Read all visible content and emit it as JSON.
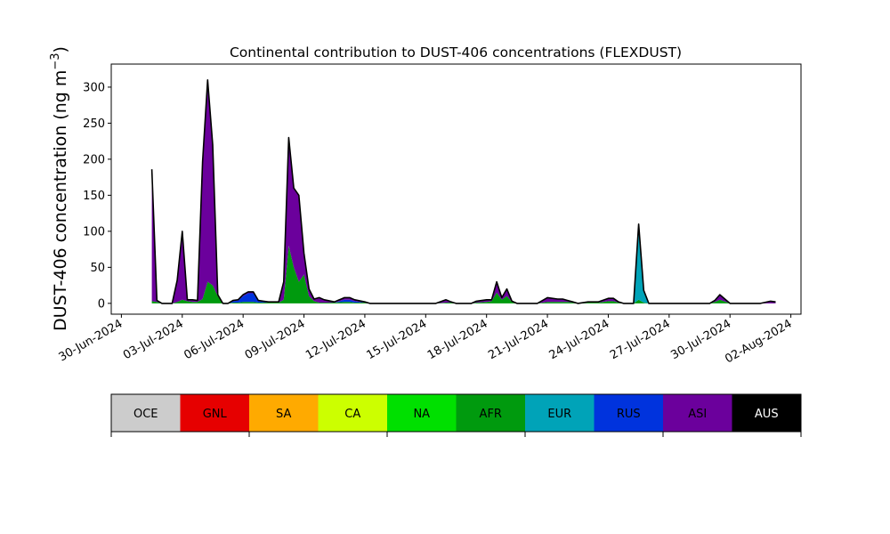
{
  "chart_data": {
    "type": "area",
    "stacked": true,
    "title": "Continental contribution to DUST-406 concentrations (FLEXDUST)",
    "ylabel": "DUST-406 concentration (ng m⁻³)",
    "ylabel_main": "DUST-406 concentration (ng m",
    "ylabel_sup": "−3",
    "ylabel_close": ")",
    "xlabel": "",
    "ylim": [
      -15,
      332
    ],
    "xlim": [
      "2024-06-29T12:00",
      "2024-08-02T12:00"
    ],
    "yticks": [
      0,
      50,
      100,
      150,
      200,
      250,
      300
    ],
    "xticks": [
      "30-Jun-2024",
      "03-Jul-2024",
      "06-Jul-2024",
      "09-Jul-2024",
      "12-Jul-2024",
      "15-Jul-2024",
      "18-Jul-2024",
      "21-Jul-2024",
      "24-Jul-2024",
      "27-Jul-2024",
      "30-Jul-2024",
      "02-Aug-2024"
    ],
    "xtick_dates": [
      "2024-06-30",
      "2024-07-03",
      "2024-07-06",
      "2024-07-09",
      "2024-07-12",
      "2024-07-15",
      "2024-07-18",
      "2024-07-21",
      "2024-07-24",
      "2024-07-27",
      "2024-07-30",
      "2024-08-02"
    ],
    "grid": false,
    "legend": "colorbar-below",
    "legend_entries": [
      {
        "name": "OCE",
        "color": "#cccccc",
        "text_color": "#000000"
      },
      {
        "name": "GNL",
        "color": "#e60000",
        "text_color": "#000000"
      },
      {
        "name": "SA",
        "color": "#ffaa00",
        "text_color": "#000000"
      },
      {
        "name": "CA",
        "color": "#ccff00",
        "text_color": "#000000"
      },
      {
        "name": "NA",
        "color": "#00e000",
        "text_color": "#000000"
      },
      {
        "name": "AFR",
        "color": "#009a0e",
        "text_color": "#000000"
      },
      {
        "name": "EUR",
        "color": "#00a3b8",
        "text_color": "#000000"
      },
      {
        "name": "RUS",
        "color": "#0033dd",
        "text_color": "#000000"
      },
      {
        "name": "ASI",
        "color": "#6b009c",
        "text_color": "#000000"
      },
      {
        "name": "AUS",
        "color": "#000000",
        "text_color": "#ffffff"
      }
    ],
    "x": [
      "2024-07-01T12:00",
      "2024-07-01T18:00",
      "2024-07-02T00:00",
      "2024-07-02T06:00",
      "2024-07-02T12:00",
      "2024-07-02T18:00",
      "2024-07-03T00:00",
      "2024-07-03T06:00",
      "2024-07-03T12:00",
      "2024-07-03T18:00",
      "2024-07-04T00:00",
      "2024-07-04T06:00",
      "2024-07-04T12:00",
      "2024-07-04T18:00",
      "2024-07-05T00:00",
      "2024-07-05T06:00",
      "2024-07-05T12:00",
      "2024-07-05T18:00",
      "2024-07-06T00:00",
      "2024-07-06T06:00",
      "2024-07-06T12:00",
      "2024-07-06T18:00",
      "2024-07-07T00:00",
      "2024-07-07T06:00",
      "2024-07-07T12:00",
      "2024-07-07T18:00",
      "2024-07-08T00:00",
      "2024-07-08T06:00",
      "2024-07-08T12:00",
      "2024-07-08T18:00",
      "2024-07-09T00:00",
      "2024-07-09T06:00",
      "2024-07-09T12:00",
      "2024-07-09T18:00",
      "2024-07-10T00:00",
      "2024-07-10T12:00",
      "2024-07-11T00:00",
      "2024-07-11T06:00",
      "2024-07-11T12:00",
      "2024-07-12T00:00",
      "2024-07-12T06:00",
      "2024-07-12T12:00",
      "2024-07-13T00:00",
      "2024-07-13T12:00",
      "2024-07-14T00:00",
      "2024-07-14T12:00",
      "2024-07-15T00:00",
      "2024-07-15T12:00",
      "2024-07-16T00:00",
      "2024-07-16T06:00",
      "2024-07-16T12:00",
      "2024-07-17T00:00",
      "2024-07-17T06:00",
      "2024-07-17T12:00",
      "2024-07-18T00:00",
      "2024-07-18T06:00",
      "2024-07-18T12:00",
      "2024-07-18T18:00",
      "2024-07-19T00:00",
      "2024-07-19T06:00",
      "2024-07-19T12:00",
      "2024-07-19T18:00",
      "2024-07-20T00:00",
      "2024-07-20T12:00",
      "2024-07-21T00:00",
      "2024-07-21T12:00",
      "2024-07-21T18:00",
      "2024-07-22T00:00",
      "2024-07-22T06:00",
      "2024-07-22T12:00",
      "2024-07-23T00:00",
      "2024-07-23T12:00",
      "2024-07-24T00:00",
      "2024-07-24T06:00",
      "2024-07-24T12:00",
      "2024-07-24T18:00",
      "2024-07-25T00:00",
      "2024-07-25T06:00",
      "2024-07-25T12:00",
      "2024-07-25T18:00",
      "2024-07-26T00:00",
      "2024-07-26T06:00",
      "2024-07-26T12:00",
      "2024-07-27T00:00",
      "2024-07-27T12:00",
      "2024-07-28T00:00",
      "2024-07-28T12:00",
      "2024-07-29T00:00",
      "2024-07-29T06:00",
      "2024-07-29T12:00",
      "2024-07-30T00:00",
      "2024-07-30T12:00",
      "2024-07-31T00:00",
      "2024-07-31T12:00",
      "2024-08-01T00:00",
      "2024-08-01T06:00"
    ],
    "series": [
      {
        "name": "NA",
        "color": "#00e000",
        "values": [
          0,
          0,
          0,
          0,
          0,
          0,
          0,
          0,
          0,
          0,
          0,
          0,
          0,
          0,
          0,
          0,
          0,
          0,
          0,
          0,
          0,
          0,
          0,
          0,
          0,
          0,
          0,
          0,
          0,
          0,
          0,
          0,
          0,
          0,
          0,
          0,
          0,
          0,
          0,
          0,
          0,
          0,
          0,
          0,
          0,
          0,
          0,
          0,
          0,
          0,
          0,
          0,
          0,
          0,
          0,
          0,
          0,
          0,
          0,
          0,
          0,
          0,
          0,
          0,
          0,
          0,
          0,
          0,
          0,
          0,
          0,
          0,
          0,
          0,
          0,
          0,
          0,
          0,
          0,
          0,
          0,
          0,
          0,
          0,
          0,
          0,
          0,
          0,
          0,
          0,
          0,
          0,
          0,
          0,
          0,
          0
        ]
      },
      {
        "name": "AFR",
        "color": "#009a0e",
        "values": [
          3,
          2,
          0,
          0,
          0,
          2,
          5,
          3,
          2,
          2,
          6,
          30,
          25,
          10,
          0,
          0,
          1,
          1,
          2,
          2,
          2,
          1,
          1,
          1,
          1,
          1,
          5,
          80,
          50,
          30,
          40,
          10,
          3,
          1,
          1,
          1,
          2,
          2,
          1,
          1,
          0,
          0,
          0,
          0,
          0,
          0,
          0,
          0,
          1,
          1,
          0,
          0,
          0,
          1,
          2,
          3,
          15,
          5,
          10,
          2,
          0,
          0,
          0,
          0,
          2,
          2,
          2,
          2,
          1,
          0,
          1,
          1,
          3,
          3,
          1,
          0,
          0,
          0,
          5,
          1,
          0,
          0,
          0,
          0,
          0,
          0,
          0,
          0,
          2,
          5,
          0,
          0,
          0,
          0,
          0,
          0
        ]
      },
      {
        "name": "EUR",
        "color": "#00a3b8",
        "values": [
          0,
          0,
          0,
          0,
          0,
          0,
          0,
          0,
          0,
          0,
          0,
          0,
          0,
          0,
          0,
          0,
          0,
          0,
          0,
          0,
          0,
          0,
          0,
          0,
          0,
          0,
          0,
          0,
          0,
          0,
          0,
          0,
          0,
          0,
          0,
          0,
          0,
          0,
          0,
          0,
          0,
          0,
          0,
          0,
          0,
          0,
          0,
          0,
          0,
          0,
          0,
          0,
          0,
          0,
          0,
          0,
          0,
          0,
          0,
          0,
          0,
          0,
          0,
          0,
          0,
          0,
          0,
          0,
          0,
          0,
          0,
          0,
          0,
          0,
          0,
          0,
          0,
          0,
          95,
          15,
          0,
          0,
          0,
          0,
          0,
          0,
          0,
          0,
          0,
          0,
          0,
          0,
          0,
          0,
          0,
          0
        ]
      },
      {
        "name": "RUS",
        "color": "#0033dd",
        "values": [
          0,
          0,
          0,
          0,
          0,
          0,
          0,
          0,
          0,
          0,
          0,
          0,
          0,
          0,
          0,
          0,
          2,
          3,
          8,
          12,
          12,
          2,
          1,
          0,
          0,
          0,
          0,
          0,
          0,
          0,
          0,
          0,
          0,
          0,
          0,
          0,
          3,
          3,
          2,
          0,
          0,
          0,
          0,
          0,
          0,
          0,
          0,
          0,
          0,
          0,
          0,
          0,
          0,
          0,
          0,
          0,
          0,
          0,
          0,
          0,
          0,
          0,
          0,
          0,
          0,
          0,
          0,
          0,
          0,
          0,
          0,
          0,
          0,
          0,
          0,
          0,
          0,
          0,
          0,
          0,
          0,
          0,
          0,
          0,
          0,
          0,
          0,
          0,
          0,
          0,
          0,
          0,
          0,
          0,
          0,
          0
        ]
      },
      {
        "name": "ASI",
        "color": "#6b009c",
        "values": [
          183,
          2,
          0,
          0,
          0,
          30,
          95,
          2,
          3,
          2,
          190,
          280,
          195,
          2,
          0,
          0,
          1,
          1,
          2,
          2,
          2,
          1,
          1,
          1,
          1,
          1,
          25,
          150,
          110,
          120,
          30,
          10,
          3,
          7,
          4,
          1,
          3,
          3,
          2,
          1,
          0,
          0,
          0,
          0,
          0,
          0,
          0,
          0,
          4,
          1,
          0,
          0,
          0,
          2,
          3,
          2,
          15,
          3,
          10,
          1,
          0,
          0,
          0,
          0,
          6,
          4,
          4,
          2,
          1,
          0,
          1,
          1,
          4,
          4,
          1,
          0,
          0,
          0,
          10,
          2,
          0,
          0,
          0,
          0,
          0,
          0,
          0,
          0,
          2,
          7,
          0,
          0,
          0,
          0,
          3,
          2
        ]
      }
    ]
  }
}
